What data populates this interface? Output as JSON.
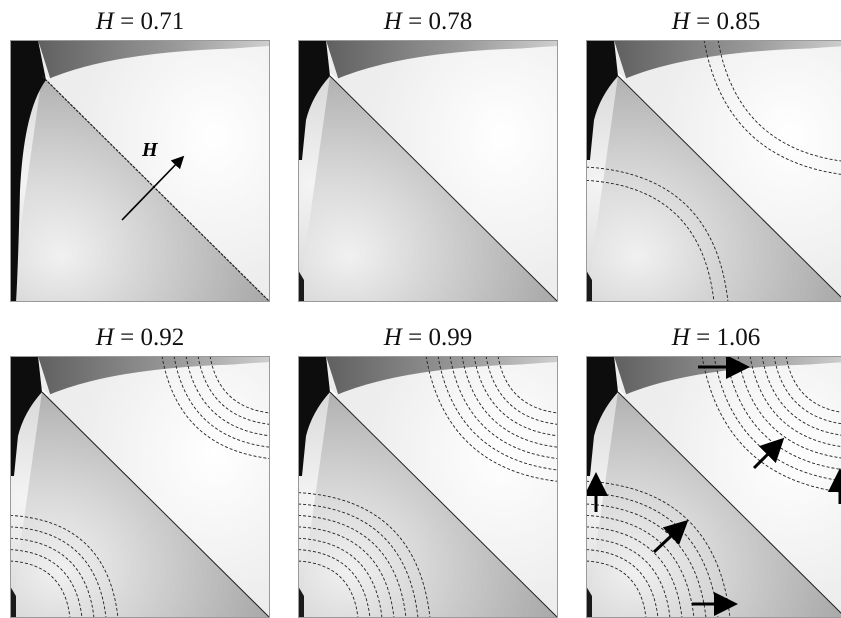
{
  "figure": {
    "panels": [
      {
        "label_var": "H",
        "label_eq": " = ",
        "label_value": "0.71",
        "field_arrow_label": "H",
        "contour_rings": 0,
        "moment_arrows": false
      },
      {
        "label_var": "H",
        "label_eq": " = ",
        "label_value": "0.78",
        "contour_rings": 0,
        "moment_arrows": false
      },
      {
        "label_var": "H",
        "label_eq": " = ",
        "label_value": "0.85",
        "contour_rings": 2,
        "moment_arrows": false
      },
      {
        "label_var": "H",
        "label_eq": " = ",
        "label_value": "0.92",
        "contour_rings": 5,
        "moment_arrows": false
      },
      {
        "label_var": "H",
        "label_eq": " = ",
        "label_value": "0.99",
        "contour_rings": 7,
        "moment_arrows": false
      },
      {
        "label_var": "H",
        "label_eq": " = ",
        "label_value": "1.06",
        "contour_rings": 8,
        "moment_arrows": true
      }
    ]
  }
}
